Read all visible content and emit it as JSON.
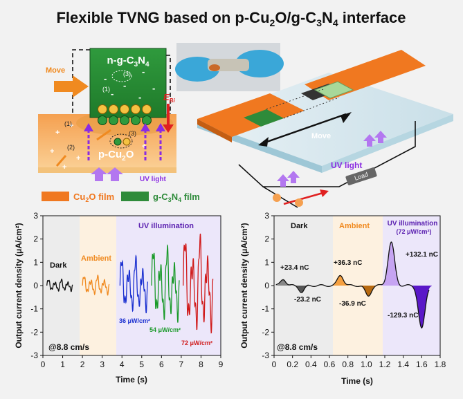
{
  "title": {
    "pre": "Flexible TVNG based on p-Cu",
    "sub1": "2",
    "mid": "O/g-C",
    "sub2": "3",
    "n": "N",
    "sub3": "4",
    "post": " interface"
  },
  "schematic": {
    "n_label": "n-g-C",
    "n_sub1": "3",
    "n_mid": "N",
    "n_sub2": "4",
    "p_label": "p-Cu",
    "p_sub": "2",
    "p_post": "O",
    "move": "Move",
    "ebi": "E",
    "ebi_sub": "Bi",
    "uv": "UV light",
    "marker1": "(1)",
    "marker2": "(2)",
    "marker3": "(3)"
  },
  "legend": {
    "cu2o": "Cu",
    "cu2o_sub": "2",
    "cu2o_post": "O film",
    "gcn": "g-C",
    "gcn_sub1": "3",
    "gcn_mid": "N",
    "gcn_sub2": "4",
    "gcn_post": " film"
  },
  "device": {
    "move": "Move",
    "uv": "UV light",
    "load": "Load"
  },
  "colors": {
    "orange": "#f07820",
    "green": "#2e8b3a",
    "purple": "#8a2be2",
    "bg": "#f2f2f2"
  },
  "left_chart": {
    "ylabel": "Output current density (μA/cm²)",
    "xlabel": "Time (s)",
    "speed": "@8.8 cm/s",
    "xticks": [
      "0",
      "1",
      "2",
      "3",
      "4",
      "5",
      "6",
      "7",
      "8",
      "9"
    ],
    "yticks": [
      "3",
      "2",
      "1",
      "0",
      "-1",
      "-2",
      "-3"
    ],
    "regions": {
      "dark": "Dark",
      "ambient": "Ambient",
      "uv": "UV illumination"
    },
    "annotations": {
      "a36": "36 μW/cm²",
      "a54": "54 μW/cm²",
      "a72": "72 μW/cm²"
    }
  },
  "right_chart": {
    "ylabel": "Output current density (μA/cm²)",
    "xlabel": "Time (s)",
    "speed": "@8.8 cm/s",
    "xticks": [
      "0",
      "0.2",
      "0.4",
      "0.6",
      "0.8",
      "1.0",
      "1.2",
      "1.4",
      "1.6",
      "1.8"
    ],
    "yticks": [
      "3",
      "2",
      "1",
      "0",
      "-1",
      "-2",
      "-3"
    ],
    "regions": {
      "dark": "Dark",
      "ambient": "Ambient",
      "uv": "UV illumination",
      "uv_power": "(72 μW/cm²)"
    },
    "charges": {
      "c1": "+23.4 nC",
      "c2": "-23.2 nC",
      "c3": "+36.3 nC",
      "c4": "-36.9 nC",
      "c5": "+132.1 nC",
      "c6": "-129.3 nC"
    }
  }
}
